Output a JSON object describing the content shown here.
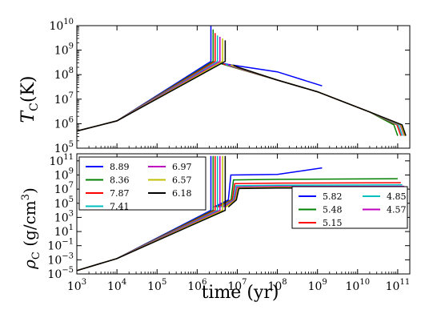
{
  "chart_data": [
    {
      "type": "line",
      "xscale": "log",
      "yscale": "log",
      "xlim": [
        1000,
        200000000000
      ],
      "ylim": [
        100000,
        10000000000
      ],
      "ylabel": "T_C(K)",
      "ylabel_main": "T",
      "ylabel_sub": "C",
      "ylabel_unit": "(K)",
      "yticks": [
        {
          "value": 100000,
          "base": "10",
          "exp": "5"
        },
        {
          "value": 1000000,
          "base": "10",
          "exp": "6"
        },
        {
          "value": 10000000,
          "base": "10",
          "exp": "7"
        },
        {
          "value": 100000000,
          "base": "10",
          "exp": "8"
        },
        {
          "value": 1000000000,
          "base": "10",
          "exp": "9"
        },
        {
          "value": 10000000000,
          "base": "10",
          "exp": "10"
        }
      ],
      "series": [
        {
          "color": "#0000ff",
          "collapse_x": 2200000,
          "spike_y": 10000000000,
          "cool_y": 300000000,
          "fold_x": 7000000,
          "plateau_x": 1300000000,
          "plateau_y": 35000000
        },
        {
          "color": "#008000",
          "collapse_x": 2500000,
          "spike_y": 7000000000,
          "cool_y": 280000000,
          "fold_x": 8000000,
          "end_x": 100000000000
        },
        {
          "color": "#ff0000",
          "collapse_x": 2800000,
          "spike_y": 5000000000,
          "cool_y": 270000000,
          "fold_x": 8500000,
          "end_x": 120000000000
        },
        {
          "color": "#00bfbf",
          "collapse_x": 3200000,
          "spike_y": 4000000000,
          "cool_y": 260000000,
          "fold_x": 9000000,
          "end_x": 130000000000
        },
        {
          "color": "#bf00bf",
          "collapse_x": 3700000,
          "spike_y": 3500000000,
          "cool_y": 255000000,
          "fold_x": 9500000,
          "end_x": 145000000000
        },
        {
          "color": "#bfbf00",
          "collapse_x": 4300000,
          "spike_y": 3000000000,
          "cool_y": 250000000,
          "fold_x": 10000000,
          "end_x": 150000000000
        },
        {
          "color": "#000000",
          "collapse_x": 5000000,
          "spike_y": 2500000000,
          "cool_y": 245000000,
          "fold_x": 10500000,
          "end_x": 160000000000
        }
      ]
    },
    {
      "type": "line",
      "xscale": "log",
      "yscale": "log",
      "xlim": [
        1000,
        200000000000
      ],
      "ylim": [
        1e-05,
        1000000000000
      ],
      "xlabel": "time (yr)",
      "ylabel": "ρ_C (g/cm^3)",
      "xticks": [
        {
          "value": 1000,
          "base": "10",
          "exp": "3"
        },
        {
          "value": 10000,
          "base": "10",
          "exp": "4"
        },
        {
          "value": 100000,
          "base": "10",
          "exp": "5"
        },
        {
          "value": 1000000,
          "base": "10",
          "exp": "6"
        },
        {
          "value": 10000000,
          "base": "10",
          "exp": "7"
        },
        {
          "value": 100000000,
          "base": "10",
          "exp": "8"
        },
        {
          "value": 1000000000,
          "base": "10",
          "exp": "9"
        },
        {
          "value": 10000000000,
          "base": "10",
          "exp": "10"
        },
        {
          "value": 100000000000,
          "base": "10",
          "exp": "11"
        }
      ],
      "yticks": [
        {
          "value": 1e-05,
          "base": "10",
          "exp": "−5"
        },
        {
          "value": 0.001,
          "base": "10",
          "exp": "−3"
        },
        {
          "value": 0.1,
          "base": "10",
          "exp": "−1"
        },
        {
          "value": 10,
          "base": "10",
          "exp": "1"
        },
        {
          "value": 1000,
          "base": "10",
          "exp": "3"
        },
        {
          "value": 100000,
          "base": "10",
          "exp": "5"
        },
        {
          "value": 10000000,
          "base": "10",
          "exp": "7"
        },
        {
          "value": 1000000000,
          "base": "10",
          "exp": "9"
        },
        {
          "value": 100000000000,
          "base": "10",
          "exp": "11"
        }
      ],
      "legend_left": {
        "placement": "upper-left",
        "entries": [
          {
            "label": "8.89",
            "color": "#0000ff"
          },
          {
            "label": "6.97",
            "color": "#bf00bf"
          },
          {
            "label": "8.36",
            "color": "#008000"
          },
          {
            "label": "6.57",
            "color": "#bfbf00"
          },
          {
            "label": "7.87",
            "color": "#ff0000"
          },
          {
            "label": "6.18",
            "color": "#000000"
          },
          {
            "label": "7.41",
            "color": "#00bfbf"
          }
        ]
      },
      "legend_right": {
        "placement": "center-right",
        "entries": [
          {
            "label": "5.82",
            "color": "#0000ff"
          },
          {
            "label": "4.85",
            "color": "#00bfbf"
          },
          {
            "label": "5.48",
            "color": "#008000"
          },
          {
            "label": "4.57",
            "color": "#bf00bf"
          },
          {
            "label": "5.15",
            "color": "#ff0000"
          }
        ]
      },
      "series": [
        {
          "color": "#0000ff",
          "collapse_x": 2200000,
          "jump_x": 6000000,
          "level_y": 1000000000,
          "end_x": 1300000000,
          "end_y": 10000000000
        },
        {
          "color": "#008000",
          "collapse_x": 2500000,
          "jump_x": 7000000,
          "level_y": 200000000,
          "end_x": 100000000000,
          "end_y": 300000000
        },
        {
          "color": "#ff0000",
          "collapse_x": 2800000,
          "jump_x": 7500000,
          "level_y": 60000000,
          "end_x": 120000000000,
          "end_y": 80000000
        },
        {
          "color": "#00bfbf",
          "collapse_x": 3200000,
          "jump_x": 8000000,
          "level_y": 30000000,
          "end_x": 130000000000,
          "end_y": 40000000
        },
        {
          "color": "#bf00bf",
          "collapse_x": 3700000,
          "jump_x": 8500000,
          "level_y": 20000000,
          "end_x": 145000000000,
          "end_y": 25000000
        },
        {
          "color": "#bfbf00",
          "collapse_x": 4300000,
          "jump_x": 9000000,
          "level_y": 15000000,
          "end_x": 150000000000,
          "end_y": 18000000
        },
        {
          "color": "#000000",
          "collapse_x": 5000000,
          "jump_x": 9500000,
          "level_y": 12000000,
          "end_x": 160000000000,
          "end_y": 14000000
        }
      ]
    }
  ]
}
